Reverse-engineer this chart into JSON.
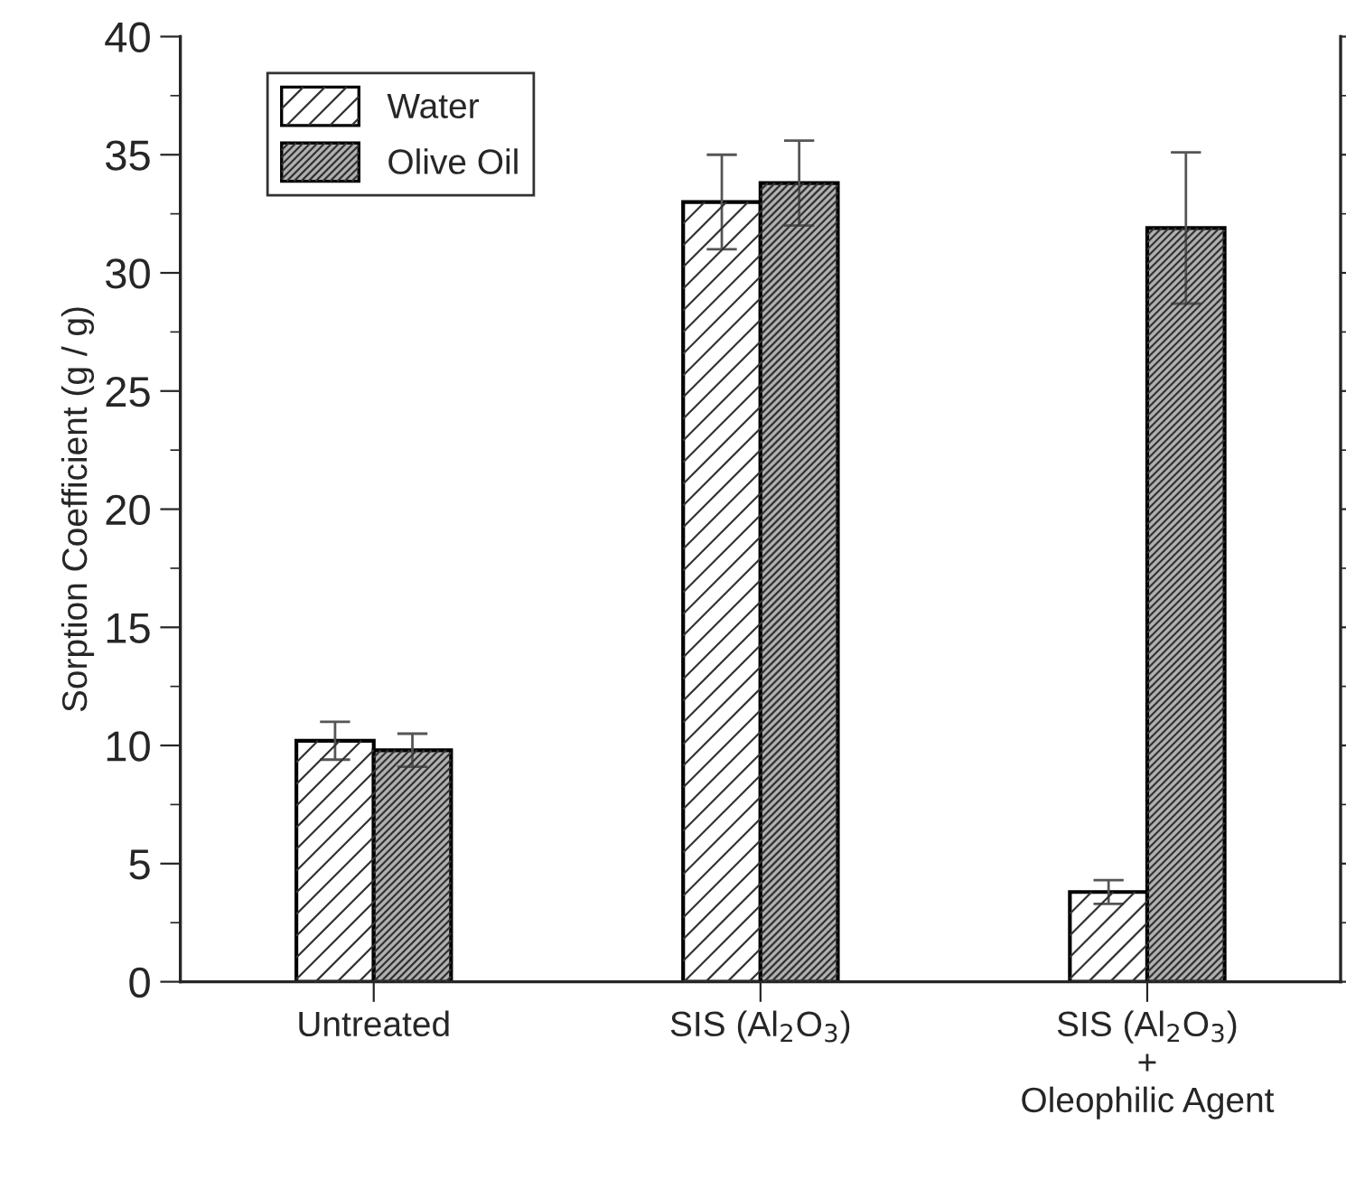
{
  "chart_data": {
    "type": "bar",
    "ylabel": "Sorption Coefficient (g / g)",
    "categories": [
      "Untreated",
      "SIS (Al$_{2}$O$_{3}$)",
      "SIS (Al$_{2}$O$_{3}$)\n+\nOleophilic Agent"
    ],
    "series": [
      {
        "name": "Water",
        "color": "#ffffff",
        "values": [
          10.2,
          33.0,
          3.8
        ],
        "errors": [
          0.8,
          2.0,
          0.5
        ]
      },
      {
        "name": "Olive Oil",
        "color": "#b0b0b0",
        "values": [
          9.8,
          33.8,
          31.9
        ],
        "errors": [
          0.7,
          1.8,
          3.2
        ]
      }
    ],
    "ylim": [
      0,
      40
    ],
    "yticks": [
      0,
      5,
      10,
      15,
      20,
      25,
      30,
      35,
      40
    ],
    "grid": false,
    "legend": "top left"
  }
}
